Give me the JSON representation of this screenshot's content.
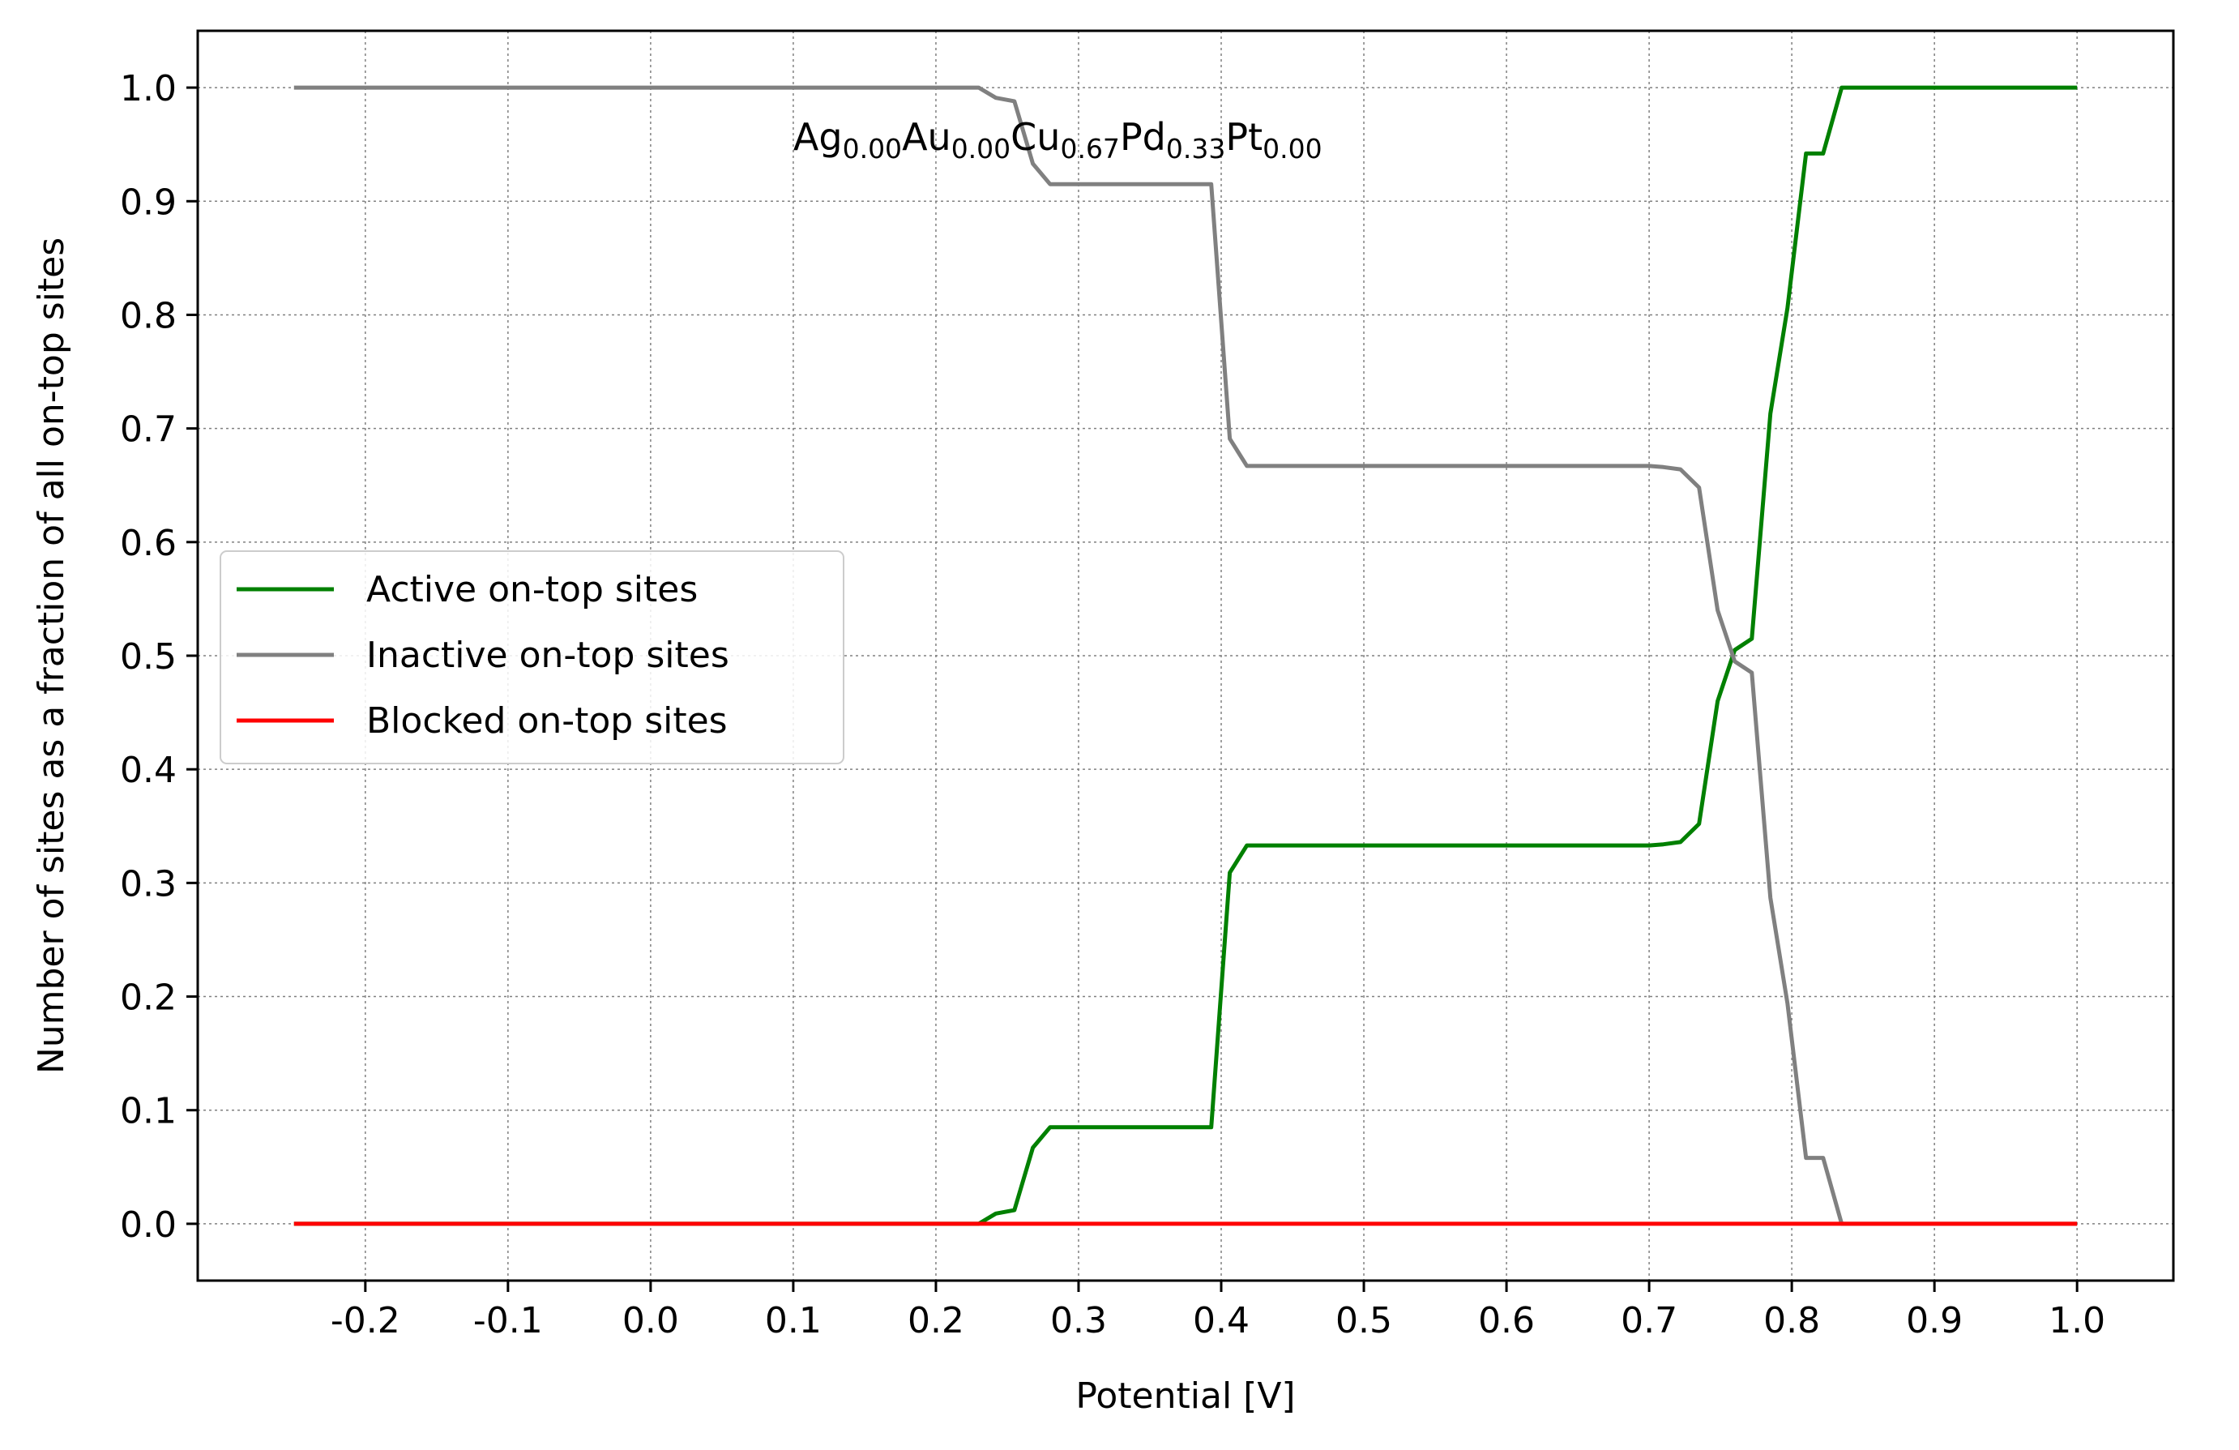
{
  "chart_data": {
    "type": "line",
    "title": "",
    "xlabel": "Potential [V]",
    "ylabel": "Number of sites as a fraction of all on-top sites",
    "xlim": [
      -0.3175,
      1.0675
    ],
    "ylim": [
      -0.05,
      1.05
    ],
    "xticks": [
      -0.2,
      -0.1,
      0.0,
      0.1,
      0.2,
      0.3,
      0.4,
      0.5,
      0.6,
      0.7,
      0.8,
      0.9,
      1.0
    ],
    "xtick_labels": [
      "-0.2",
      "-0.1",
      "0.0",
      "0.1",
      "0.2",
      "0.3",
      "0.4",
      "0.5",
      "0.6",
      "0.7",
      "0.8",
      "0.9",
      "1.0"
    ],
    "yticks": [
      0.0,
      0.1,
      0.2,
      0.3,
      0.4,
      0.5,
      0.6,
      0.7,
      0.8,
      0.9,
      1.0
    ],
    "ytick_labels": [
      "0.0",
      "0.1",
      "0.2",
      "0.3",
      "0.4",
      "0.5",
      "0.6",
      "0.7",
      "0.8",
      "0.9",
      "1.0"
    ],
    "grid": true,
    "legend_position": "center-left",
    "annotation": {
      "x": 0.1,
      "y": 0.955,
      "parts": [
        {
          "base": "Ag",
          "sub": "0.00"
        },
        {
          "base": "Au",
          "sub": "0.00"
        },
        {
          "base": "Cu",
          "sub": "0.67"
        },
        {
          "base": "Pd",
          "sub": "0.33"
        },
        {
          "base": "Pt",
          "sub": "0.00"
        }
      ]
    },
    "series": [
      {
        "name": "Active on-top sites",
        "color": "#008000",
        "x": [
          -0.25,
          0.23,
          0.242,
          0.255,
          0.268,
          0.28,
          0.393,
          0.406,
          0.418,
          0.7,
          0.71,
          0.722,
          0.735,
          0.748,
          0.76,
          0.772,
          0.785,
          0.797,
          0.81,
          0.822,
          0.835,
          1.0
        ],
        "y": [
          0.0,
          0.0,
          0.009,
          0.012,
          0.067,
          0.085,
          0.085,
          0.309,
          0.333,
          0.333,
          0.334,
          0.336,
          0.352,
          0.46,
          0.505,
          0.515,
          0.713,
          0.806,
          0.942,
          0.942,
          1.0,
          1.0
        ]
      },
      {
        "name": "Inactive on-top sites",
        "color": "#808080",
        "x": [
          -0.25,
          0.23,
          0.242,
          0.255,
          0.268,
          0.28,
          0.393,
          0.406,
          0.418,
          0.7,
          0.71,
          0.722,
          0.735,
          0.748,
          0.76,
          0.772,
          0.785,
          0.797,
          0.81,
          0.822,
          0.835,
          1.0
        ],
        "y": [
          1.0,
          1.0,
          0.991,
          0.988,
          0.933,
          0.915,
          0.915,
          0.691,
          0.667,
          0.667,
          0.666,
          0.664,
          0.648,
          0.54,
          0.495,
          0.485,
          0.287,
          0.194,
          0.058,
          0.058,
          0.0,
          0.0
        ]
      },
      {
        "name": "Blocked on-top sites",
        "color": "#ff0000",
        "x": [
          -0.25,
          1.0
        ],
        "y": [
          0.0,
          0.0
        ]
      }
    ]
  }
}
